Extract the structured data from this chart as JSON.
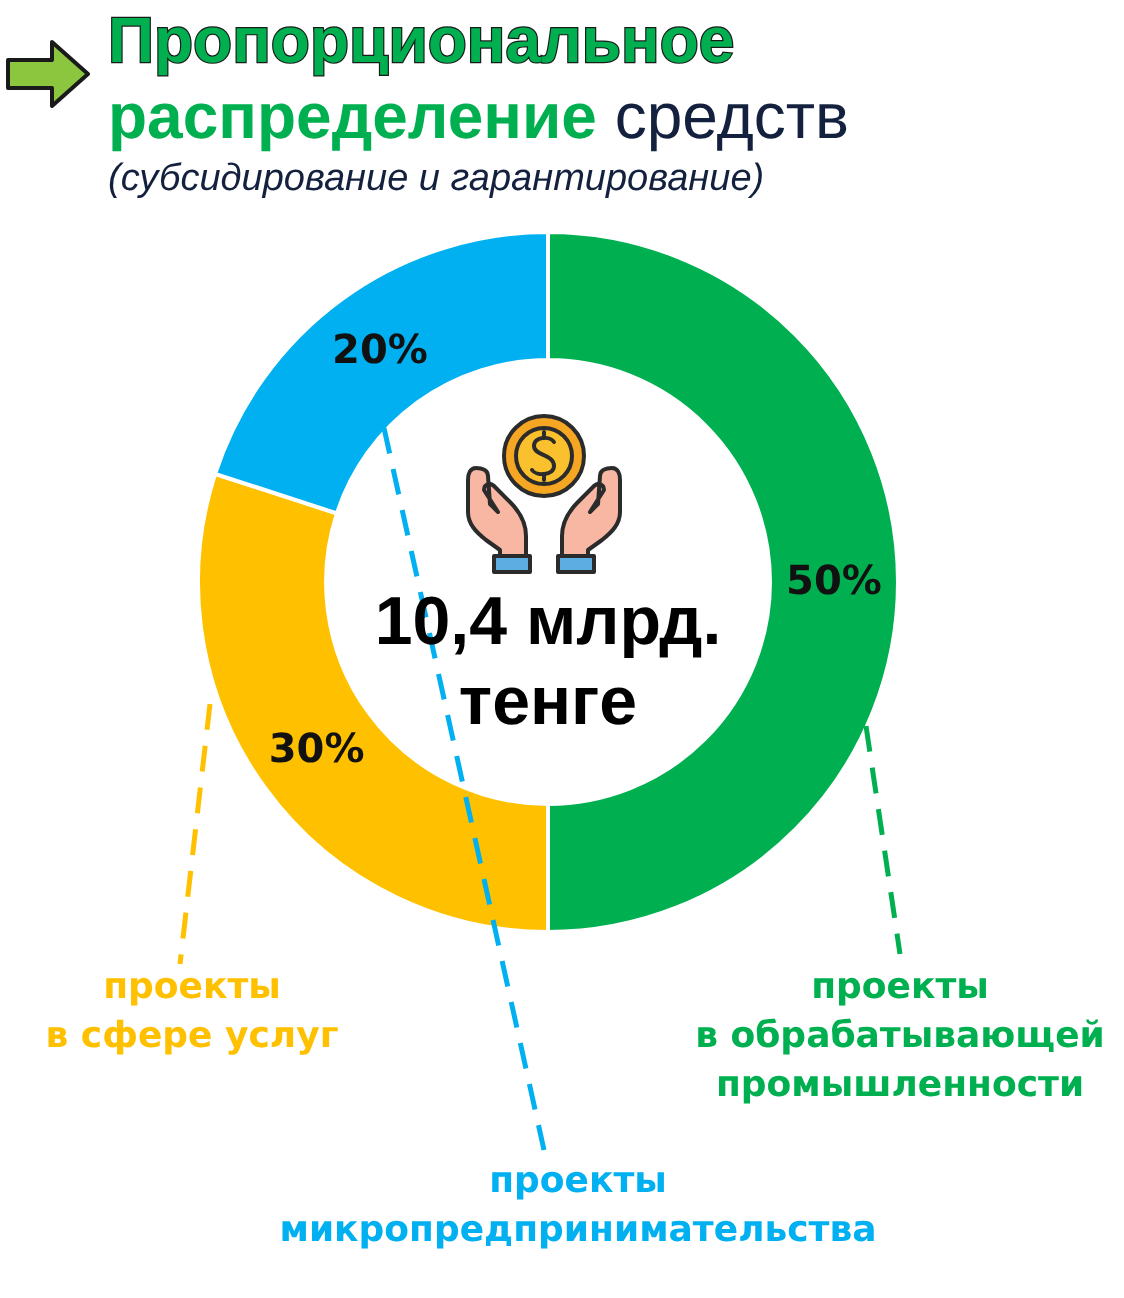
{
  "chart_data": {
    "type": "donut",
    "title": "Пропорциональное распределение средств",
    "subtitle": "(субсидирование и гарантирование)",
    "categories": [
      "проекты в обрабатывающей промышленности",
      "проекты в сфере услуг",
      "проекты микропредпринимательства"
    ],
    "values": [
      50,
      30,
      20
    ],
    "colors": [
      "#00b050",
      "#ffc000",
      "#00b0f0"
    ],
    "value_labels": [
      "50%",
      "30%",
      "20%"
    ],
    "annotations": [
      "10,4 млрд. тенге"
    ]
  }
}
